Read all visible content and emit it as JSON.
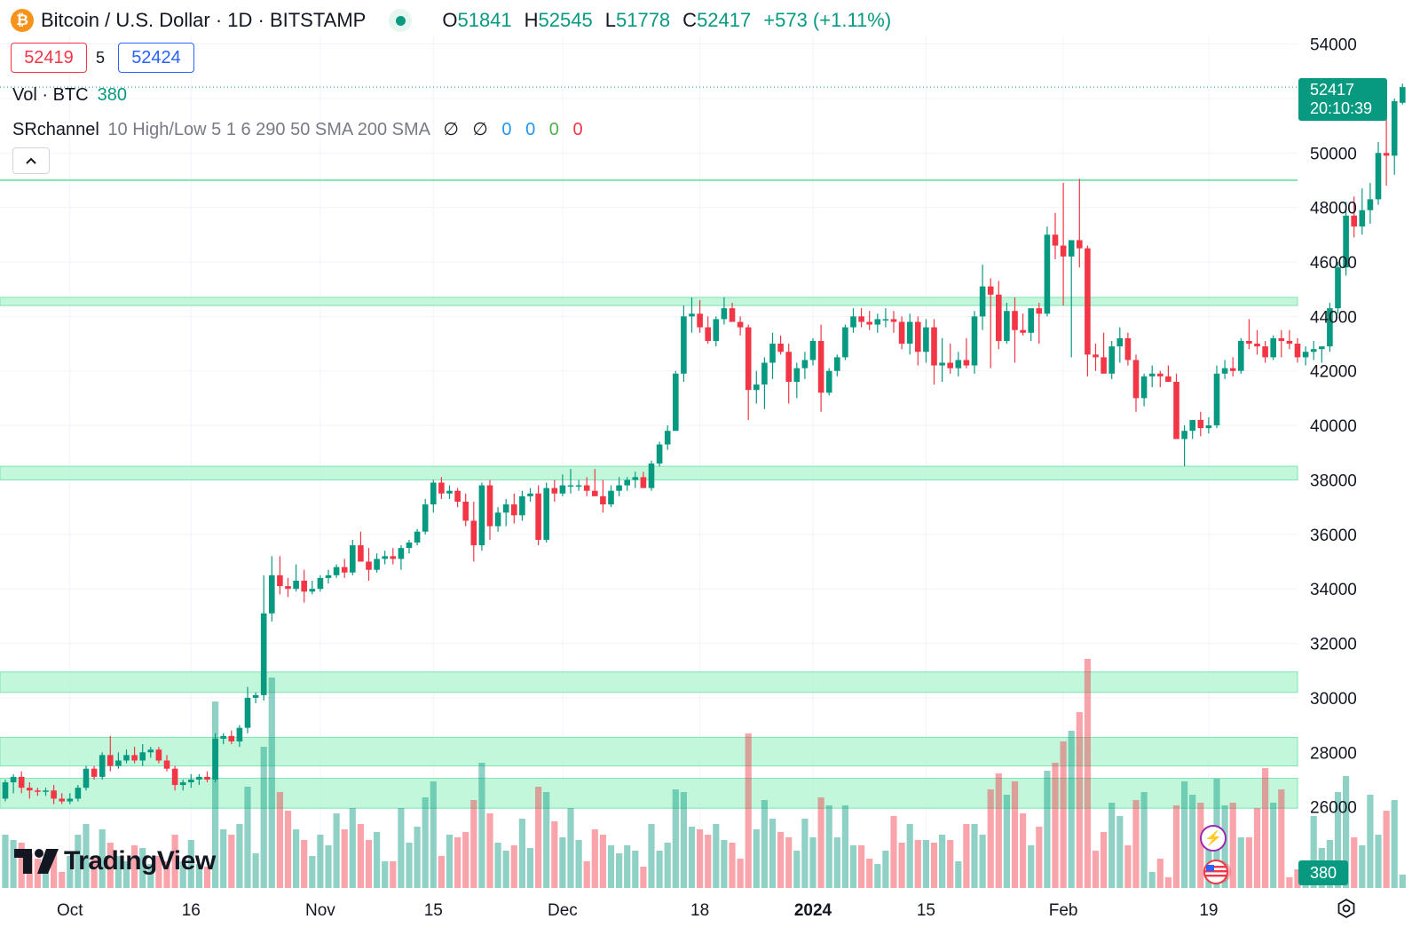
{
  "header": {
    "title": "Bitcoin / U.S. Dollar · 1D · BITSTAMP",
    "icon": "bitcoin-icon",
    "ohlc": [
      {
        "key": "O",
        "value": "51841"
      },
      {
        "key": "H",
        "value": "52545"
      },
      {
        "key": "L",
        "value": "51778"
      },
      {
        "key": "C",
        "value": "52417"
      }
    ],
    "change": "+573 (+1.11%)"
  },
  "trade": {
    "bid": "52419",
    "spread": "5",
    "ask": "52424"
  },
  "indicators": {
    "volume_label": "Vol · BTC",
    "volume_value": "380",
    "sr_name": "SRchannel",
    "sr_params": "10 High/Low 5 1 6 290 50 SMA 200 SMA",
    "sr_symbols": [
      "∅",
      "∅"
    ],
    "sr_values": [
      {
        "value": "0",
        "color": "#2196f3"
      },
      {
        "value": "0",
        "color": "#2196f3"
      },
      {
        "value": "0",
        "color": "#4caf50"
      },
      {
        "value": "0",
        "color": "#f23645"
      }
    ]
  },
  "last_price": {
    "price": "52417",
    "countdown": "20:10:39"
  },
  "volume_badge": "380",
  "brand": "TradingView",
  "colors": {
    "up": "#089981",
    "down": "#f23645",
    "zone": "#b9f6d6",
    "zone_border": "#7fe3b1"
  },
  "chart_data": {
    "type": "candlestick",
    "symbol": "BTCUSD",
    "interval": "1D",
    "ylim": [
      24000,
      54000
    ],
    "y_ticks": [
      26000,
      28000,
      30000,
      32000,
      34000,
      36000,
      38000,
      40000,
      42000,
      44000,
      46000,
      48000,
      50000,
      52000,
      54000
    ],
    "x_ticks": [
      {
        "label": "Oct",
        "index": 8,
        "bold": false
      },
      {
        "label": "16",
        "index": 23,
        "bold": false
      },
      {
        "label": "Nov",
        "index": 39,
        "bold": false
      },
      {
        "label": "15",
        "index": 53,
        "bold": false
      },
      {
        "label": "Dec",
        "index": 69,
        "bold": false
      },
      {
        "label": "18",
        "index": 86,
        "bold": false
      },
      {
        "label": "2024",
        "index": 100,
        "bold": true
      },
      {
        "label": "15",
        "index": 114,
        "bold": false
      },
      {
        "label": "Feb",
        "index": 131,
        "bold": false
      },
      {
        "label": "19",
        "index": 149,
        "bold": false
      }
    ],
    "sr_zones": [
      [
        25950,
        27050
      ],
      [
        27500,
        28550
      ],
      [
        30200,
        30950
      ],
      [
        38000,
        38500
      ],
      [
        44400,
        44700
      ]
    ],
    "sr_lines": [
      49000
    ],
    "candles": [
      [
        26300,
        27000,
        26200,
        26900,
        20
      ],
      [
        26900,
        27200,
        26500,
        27100,
        18
      ],
      [
        27100,
        27300,
        26500,
        26700,
        17
      ],
      [
        26700,
        26900,
        26300,
        26600,
        13
      ],
      [
        26600,
        26700,
        26400,
        26550,
        11
      ],
      [
        26550,
        26700,
        26400,
        26600,
        10
      ],
      [
        26600,
        26800,
        26100,
        26300,
        13
      ],
      [
        26300,
        26500,
        26100,
        26200,
        6
      ],
      [
        26200,
        26500,
        26100,
        26300,
        12
      ],
      [
        26300,
        26800,
        26200,
        26700,
        20
      ],
      [
        26700,
        27500,
        26600,
        27400,
        24
      ],
      [
        27400,
        27500,
        27000,
        27100,
        12
      ],
      [
        27100,
        28000,
        27000,
        27900,
        22
      ],
      [
        27900,
        28600,
        27300,
        27500,
        17
      ],
      [
        27500,
        28000,
        27400,
        27700,
        12
      ],
      [
        27700,
        28100,
        27600,
        27900,
        10
      ],
      [
        27900,
        28200,
        27600,
        27700,
        16
      ],
      [
        27700,
        28300,
        27500,
        28000,
        15
      ],
      [
        28000,
        28200,
        27800,
        28100,
        9
      ],
      [
        28100,
        28200,
        27600,
        27700,
        12
      ],
      [
        27700,
        27900,
        27300,
        27400,
        10
      ],
      [
        27400,
        27500,
        26600,
        26800,
        20
      ],
      [
        26800,
        27000,
        26600,
        26900,
        10
      ],
      [
        26900,
        27200,
        26700,
        27000,
        18
      ],
      [
        27000,
        27200,
        26800,
        27100,
        9
      ],
      [
        27100,
        27300,
        26900,
        27000,
        8
      ],
      [
        27000,
        28700,
        26900,
        28500,
        70
      ],
      [
        28500,
        28700,
        28300,
        28600,
        22
      ],
      [
        28600,
        28800,
        28300,
        28400,
        20
      ],
      [
        28400,
        29000,
        28200,
        28900,
        24
      ],
      [
        28900,
        30400,
        28700,
        30000,
        38
      ],
      [
        30000,
        30200,
        29800,
        30100,
        13
      ],
      [
        30100,
        34500,
        29900,
        33100,
        53
      ],
      [
        33100,
        35200,
        32800,
        34500,
        79
      ],
      [
        34500,
        35200,
        33800,
        34100,
        36
      ],
      [
        34100,
        34400,
        33700,
        34000,
        29
      ],
      [
        34000,
        34900,
        33900,
        34300,
        22
      ],
      [
        34300,
        34700,
        33500,
        33900,
        18
      ],
      [
        33900,
        34300,
        33800,
        34000,
        12
      ],
      [
        34000,
        34500,
        33900,
        34400,
        20
      ],
      [
        34400,
        34700,
        34200,
        34500,
        16
      ],
      [
        34500,
        34900,
        34400,
        34800,
        28
      ],
      [
        34800,
        35100,
        34400,
        34600,
        22
      ],
      [
        34600,
        35800,
        34500,
        35600,
        30
      ],
      [
        35600,
        36100,
        35200,
        35000,
        24
      ],
      [
        35000,
        35500,
        34300,
        34700,
        18
      ],
      [
        34700,
        35300,
        34600,
        35100,
        21
      ],
      [
        35100,
        35400,
        34900,
        35200,
        10
      ],
      [
        35200,
        35500,
        34900,
        35100,
        10
      ],
      [
        35100,
        35600,
        34700,
        35500,
        30
      ],
      [
        35500,
        35800,
        35300,
        35700,
        17
      ],
      [
        35700,
        36200,
        35600,
        36100,
        23
      ],
      [
        36100,
        37300,
        36000,
        37100,
        34
      ],
      [
        37100,
        38000,
        36800,
        37900,
        40
      ],
      [
        37900,
        38100,
        37300,
        37500,
        12
      ],
      [
        37500,
        37800,
        37300,
        37600,
        20
      ],
      [
        37600,
        37700,
        37000,
        37200,
        19
      ],
      [
        37200,
        37500,
        36300,
        36500,
        21
      ],
      [
        36500,
        37200,
        35000,
        35600,
        33
      ],
      [
        35600,
        37900,
        35400,
        37800,
        47
      ],
      [
        37800,
        38000,
        35800,
        36300,
        28
      ],
      [
        36300,
        37000,
        36100,
        36800,
        17
      ],
      [
        36800,
        37300,
        36300,
        37100,
        14
      ],
      [
        37100,
        37500,
        36400,
        36700,
        16
      ],
      [
        36700,
        37600,
        36500,
        37400,
        26
      ],
      [
        37400,
        37700,
        37200,
        37500,
        15
      ],
      [
        37500,
        37800,
        35600,
        35800,
        38
      ],
      [
        35800,
        37900,
        35700,
        37700,
        36
      ],
      [
        37700,
        38000,
        37200,
        37500,
        25
      ],
      [
        37500,
        38200,
        37400,
        37800,
        19
      ],
      [
        37800,
        38400,
        37500,
        37800,
        30
      ],
      [
        37800,
        38000,
        37600,
        37800,
        18
      ],
      [
        37800,
        38100,
        37400,
        37600,
        10
      ],
      [
        37600,
        38400,
        37500,
        37400,
        22
      ],
      [
        37400,
        38000,
        36800,
        37100,
        20
      ],
      [
        37100,
        37800,
        37000,
        37600,
        16
      ],
      [
        37600,
        38100,
        37400,
        37800,
        13
      ],
      [
        37800,
        38100,
        37600,
        38000,
        16
      ],
      [
        38000,
        38300,
        37700,
        38100,
        14
      ],
      [
        38100,
        38300,
        37700,
        37700,
        8
      ],
      [
        37700,
        38700,
        37600,
        38600,
        24
      ],
      [
        38600,
        39400,
        38500,
        39300,
        14
      ],
      [
        39300,
        40000,
        39100,
        39800,
        17
      ],
      [
        39800,
        42000,
        39800,
        41900,
        37
      ],
      [
        41900,
        44400,
        41600,
        44000,
        36
      ],
      [
        44000,
        44700,
        43400,
        44100,
        23
      ],
      [
        44100,
        44600,
        43400,
        43600,
        22
      ],
      [
        43600,
        44000,
        43000,
        43100,
        20
      ],
      [
        43100,
        44000,
        42900,
        43900,
        24
      ],
      [
        43900,
        44700,
        43700,
        44300,
        18
      ],
      [
        44300,
        44500,
        43800,
        43800,
        17
      ],
      [
        43800,
        44000,
        43300,
        43600,
        11
      ],
      [
        43600,
        43700,
        40200,
        41300,
        58
      ],
      [
        41300,
        42000,
        40800,
        41500,
        22
      ],
      [
        41500,
        42500,
        40600,
        42300,
        33
      ],
      [
        42300,
        43400,
        41700,
        43000,
        26
      ],
      [
        43000,
        43300,
        42600,
        42700,
        21
      ],
      [
        42700,
        43000,
        40800,
        41600,
        19
      ],
      [
        41600,
        42300,
        41000,
        42100,
        14
      ],
      [
        42100,
        42700,
        41700,
        42400,
        26
      ],
      [
        42400,
        43200,
        42200,
        43100,
        19
      ],
      [
        43100,
        43700,
        40500,
        41200,
        34
      ],
      [
        41200,
        42100,
        41100,
        42000,
        31
      ],
      [
        42000,
        42600,
        41800,
        42500,
        19
      ],
      [
        42500,
        43700,
        42400,
        43600,
        31
      ],
      [
        43600,
        44300,
        43400,
        44000,
        16
      ],
      [
        44000,
        44300,
        43600,
        43800,
        16
      ],
      [
        43800,
        44200,
        43500,
        43700,
        11
      ],
      [
        43700,
        44100,
        43400,
        43900,
        9
      ],
      [
        43900,
        44300,
        43600,
        43900,
        14
      ],
      [
        43900,
        44200,
        43400,
        43800,
        27
      ],
      [
        43800,
        44000,
        42800,
        43000,
        17
      ],
      [
        43000,
        44100,
        42600,
        43800,
        24
      ],
      [
        43800,
        44000,
        42200,
        42700,
        18
      ],
      [
        42700,
        43900,
        42300,
        43600,
        18
      ],
      [
        43600,
        43900,
        41500,
        42200,
        17
      ],
      [
        42200,
        43200,
        41600,
        42300,
        20
      ],
      [
        42300,
        43000,
        41900,
        42100,
        18
      ],
      [
        42100,
        42700,
        41800,
        42400,
        10
      ],
      [
        42400,
        43200,
        42100,
        42200,
        24
      ],
      [
        42200,
        44200,
        41900,
        44000,
        24
      ],
      [
        44000,
        45900,
        43500,
        45100,
        20
      ],
      [
        45100,
        45400,
        42100,
        44800,
        37
      ],
      [
        44800,
        45300,
        42800,
        43100,
        43
      ],
      [
        43100,
        44500,
        43000,
        44200,
        35
      ],
      [
        44200,
        44700,
        42300,
        43500,
        40
      ],
      [
        43500,
        44100,
        43300,
        43400,
        28
      ],
      [
        43400,
        44100,
        43100,
        44300,
        16
      ],
      [
        44300,
        44500,
        43000,
        44100,
        23
      ],
      [
        44100,
        47300,
        44000,
        47000,
        44
      ],
      [
        47000,
        47800,
        46100,
        46600,
        47
      ],
      [
        46600,
        48900,
        44400,
        46200,
        55
      ],
      [
        46200,
        46600,
        42500,
        46800,
        59
      ],
      [
        46800,
        49050,
        45800,
        46500,
        66
      ],
      [
        46500,
        46600,
        41800,
        42600,
        86
      ],
      [
        42600,
        43000,
        42000,
        42500,
        14
      ],
      [
        42500,
        43400,
        42200,
        41900,
        21
      ],
      [
        41900,
        43100,
        41700,
        42900,
        32
      ],
      [
        42900,
        43600,
        42300,
        43200,
        27
      ],
      [
        43200,
        43400,
        42200,
        42400,
        16
      ],
      [
        42400,
        42600,
        40500,
        41000,
        33
      ],
      [
        41000,
        41900,
        40700,
        41800,
        36
      ],
      [
        41800,
        42200,
        41400,
        41900,
        6
      ],
      [
        41900,
        42000,
        41400,
        41800,
        11
      ],
      [
        41800,
        42200,
        41600,
        41600,
        4
      ],
      [
        41600,
        41900,
        39600,
        39500,
        31
      ],
      [
        39500,
        40000,
        38500,
        39800,
        40
      ],
      [
        39800,
        40200,
        39500,
        40200,
        35
      ],
      [
        40200,
        40500,
        39600,
        39900,
        32
      ],
      [
        39900,
        40300,
        39700,
        40000,
        20
      ],
      [
        40000,
        42200,
        39900,
        41900,
        41
      ],
      [
        41900,
        42400,
        41700,
        42100,
        31
      ],
      [
        42100,
        42500,
        41800,
        42000,
        32
      ],
      [
        42000,
        43200,
        41900,
        43100,
        19
      ],
      [
        43100,
        43900,
        42800,
        43000,
        19
      ],
      [
        43000,
        43500,
        42600,
        42900,
        30
      ],
      [
        42900,
        43100,
        42300,
        42500,
        45
      ],
      [
        42500,
        43300,
        42400,
        43200,
        32
      ],
      [
        43200,
        43500,
        42500,
        43100,
        37
      ],
      [
        43100,
        43500,
        42800,
        43000,
        4
      ],
      [
        43000,
        43200,
        42300,
        42500,
        7
      ],
      [
        42500,
        42900,
        42200,
        42700,
        8
      ],
      [
        42700,
        43100,
        42400,
        42800,
        27
      ],
      [
        42800,
        42900,
        42300,
        42900,
        15
      ],
      [
        42900,
        44500,
        42700,
        44300,
        18
      ],
      [
        44300,
        46000,
        44100,
        45800,
        36
      ],
      [
        45800,
        48200,
        45500,
        47700,
        42
      ],
      [
        47700,
        48400,
        46900,
        47300,
        19
      ],
      [
        47300,
        48700,
        47000,
        47900,
        16
      ],
      [
        47900,
        48900,
        47400,
        48300,
        35
      ],
      [
        48300,
        50400,
        48100,
        50000,
        20
      ],
      [
        50000,
        51400,
        48800,
        49900,
        29
      ],
      [
        49900,
        52000,
        49200,
        51900,
        33
      ],
      [
        51841,
        52545,
        51778,
        52417,
        5
      ]
    ]
  }
}
